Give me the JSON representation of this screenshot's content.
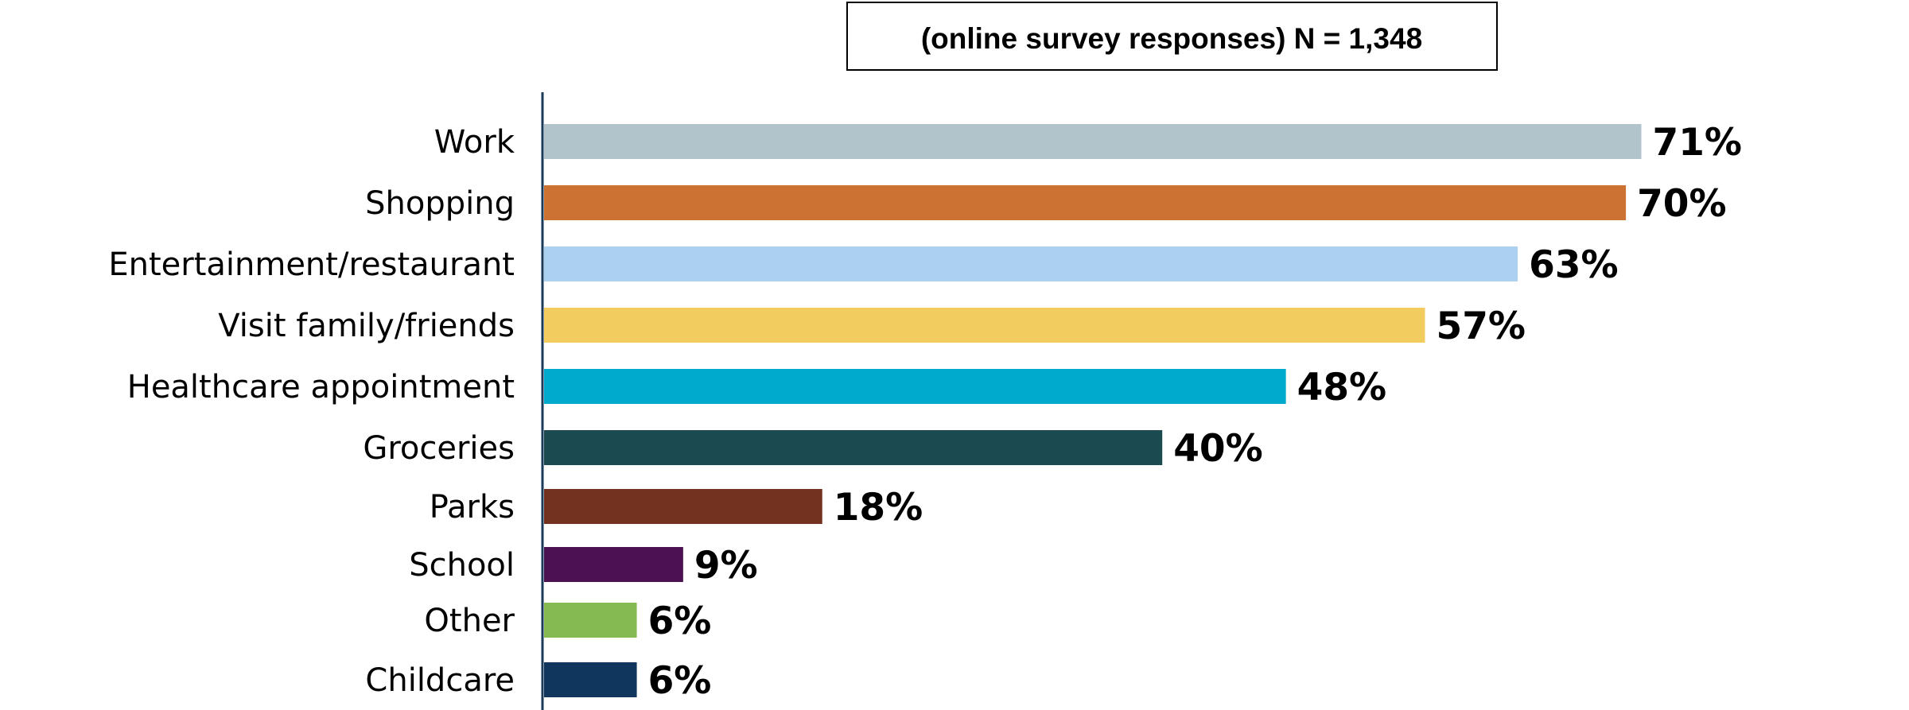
{
  "chart_data": {
    "type": "bar",
    "orientation": "horizontal",
    "note": "(online survey responses) N = 1,348",
    "categories": [
      "Work",
      "Shopping",
      "Entertainment/restaurant",
      "Visit family/friends",
      "Healthcare appointment",
      "Groceries",
      "Parks",
      "School",
      "Other",
      "Childcare"
    ],
    "values": [
      71,
      70,
      63,
      57,
      48,
      40,
      18,
      9,
      6,
      6
    ],
    "value_labels": [
      "71%",
      "70%",
      "63%",
      "57%",
      "48%",
      "40%",
      "18%",
      "9%",
      "6%",
      "6%"
    ],
    "colors": [
      "#b1c3cb",
      "#cc7232",
      "#abd0f0",
      "#f2cc5e",
      "#00aacc",
      "#1b4b50",
      "#73311f",
      "#4b1150",
      "#85b952",
      "#10365d"
    ],
    "axis_color": "#1b3b5b",
    "grid": false,
    "legend": "none"
  }
}
